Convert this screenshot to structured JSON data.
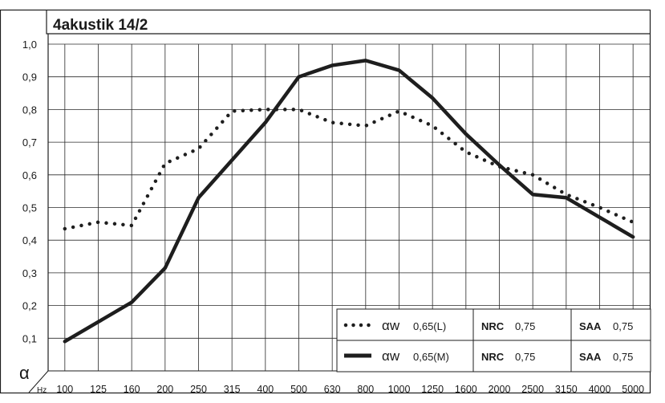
{
  "chart_data": {
    "type": "line",
    "title": "4akustik 14/2",
    "ylabel": "α",
    "xlabel": "Hz",
    "ylim": [
      0.0,
      1.0
    ],
    "y_ticks": [
      "0,1",
      "0,2",
      "0,3",
      "0,4",
      "0,5",
      "0,6",
      "0,7",
      "0,8",
      "0,9",
      "1,0"
    ],
    "y_tick_values": [
      0.1,
      0.2,
      0.3,
      0.4,
      0.5,
      0.6,
      0.7,
      0.8,
      0.9,
      1.0
    ],
    "categories": [
      "100",
      "125",
      "160",
      "200",
      "250",
      "315",
      "400",
      "500",
      "630",
      "800",
      "1000",
      "1250",
      "1600",
      "2000",
      "2500",
      "3150",
      "4000",
      "5000"
    ],
    "grid": true,
    "series": [
      {
        "style": "dotted",
        "color": "#1e1e1e",
        "values": [
          0.435,
          0.455,
          0.445,
          0.635,
          0.68,
          0.795,
          0.8,
          0.8,
          0.76,
          0.75,
          0.795,
          0.75,
          0.67,
          0.625,
          0.6,
          0.54,
          0.5,
          0.455
        ]
      },
      {
        "style": "solid",
        "color": "#1e1e1e",
        "values": [
          0.09,
          0.15,
          0.21,
          0.315,
          0.53,
          0.645,
          0.76,
          0.9,
          0.935,
          0.95,
          0.92,
          0.835,
          0.725,
          0.63,
          0.54,
          0.53,
          0.47,
          0.41
        ]
      }
    ],
    "legend": {
      "placement": "bottom-right",
      "rows": [
        {
          "symbol": "αw",
          "rating": "0,65(L)",
          "nrc_label": "NRC",
          "nrc_value": "0,75",
          "saa_label": "SAA",
          "saa_value": "0,75",
          "style": "dotted"
        },
        {
          "symbol": "αw",
          "rating": "0,65(M)",
          "nrc_label": "NRC",
          "nrc_value": "0,75",
          "saa_label": "SAA",
          "saa_value": "0,75",
          "style": "solid"
        }
      ]
    }
  }
}
